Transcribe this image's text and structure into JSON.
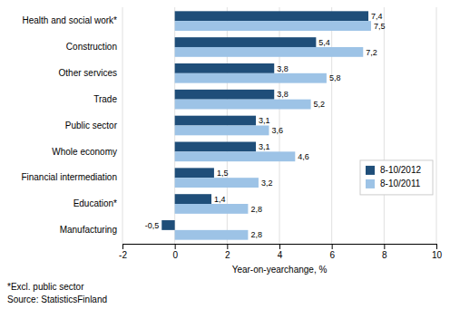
{
  "chart_data": {
    "type": "bar",
    "orientation": "horizontal",
    "categories": [
      "Health and social work*",
      "Construction",
      "Other services",
      "Trade",
      "Public sector",
      "Whole economy",
      "Financial intermediation",
      "Education*",
      "Manufacturing"
    ],
    "series": [
      {
        "name": "8-10/2012",
        "color": "#1F4E79",
        "values": [
          7.4,
          5.4,
          3.8,
          3.8,
          3.1,
          3.1,
          1.5,
          1.4,
          -0.5
        ],
        "value_labels": [
          "7,4",
          "5,4",
          "3,8",
          "3,8",
          "3,1",
          "3,1",
          "1,5",
          "1,4",
          "-0,5"
        ]
      },
      {
        "name": "8-10/2011",
        "color": "#9DC3E6",
        "values": [
          7.5,
          7.2,
          5.8,
          5.2,
          3.6,
          4.6,
          3.2,
          2.8,
          2.8
        ],
        "value_labels": [
          "7,5",
          "7,2",
          "5,8",
          "5,2",
          "3,6",
          "4,6",
          "3,2",
          "2,8",
          "2,8"
        ]
      }
    ],
    "xlabel": "Year-on-yearchange, %",
    "xlim": [
      -2,
      10
    ],
    "xticks": [
      -2,
      0,
      2,
      4,
      6,
      8,
      10
    ],
    "grid": true,
    "legend": "right",
    "data_labels": true,
    "annotations": [
      "*Excl. public sector",
      "Source: StatisticsFinland"
    ]
  }
}
